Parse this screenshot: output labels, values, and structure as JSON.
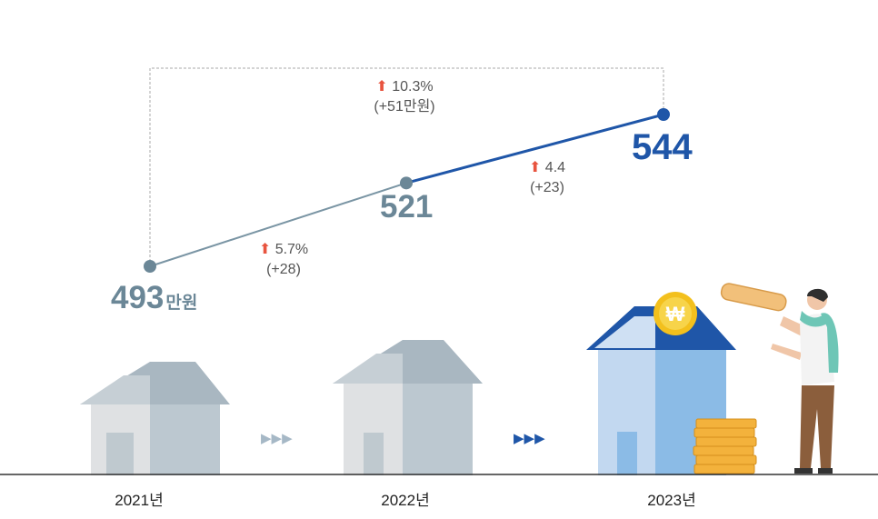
{
  "chart_data": {
    "type": "line",
    "title": "",
    "categories": [
      "2021년",
      "2022년",
      "2023년"
    ],
    "values": [
      493,
      521,
      544
    ],
    "unit": "만원",
    "value_labels": [
      "493",
      "521",
      "544"
    ],
    "ylim": [
      470,
      560
    ],
    "changes": [
      {
        "pct": "5.7%",
        "abs": "(+28)"
      },
      {
        "pct": "4.4",
        "abs": "(+23)"
      }
    ],
    "total_change": {
      "pct": "10.3%",
      "abs": "(+51만원)"
    },
    "colors": {
      "line_old": "#7a95a4",
      "line_new": "#1f56a8",
      "value_old": "#6b8797",
      "value_new": "#1f56a8",
      "arrow": "#e8543f"
    }
  },
  "icons": {
    "coin_symbol": "₩",
    "step_arrows": "▶▶▶"
  }
}
